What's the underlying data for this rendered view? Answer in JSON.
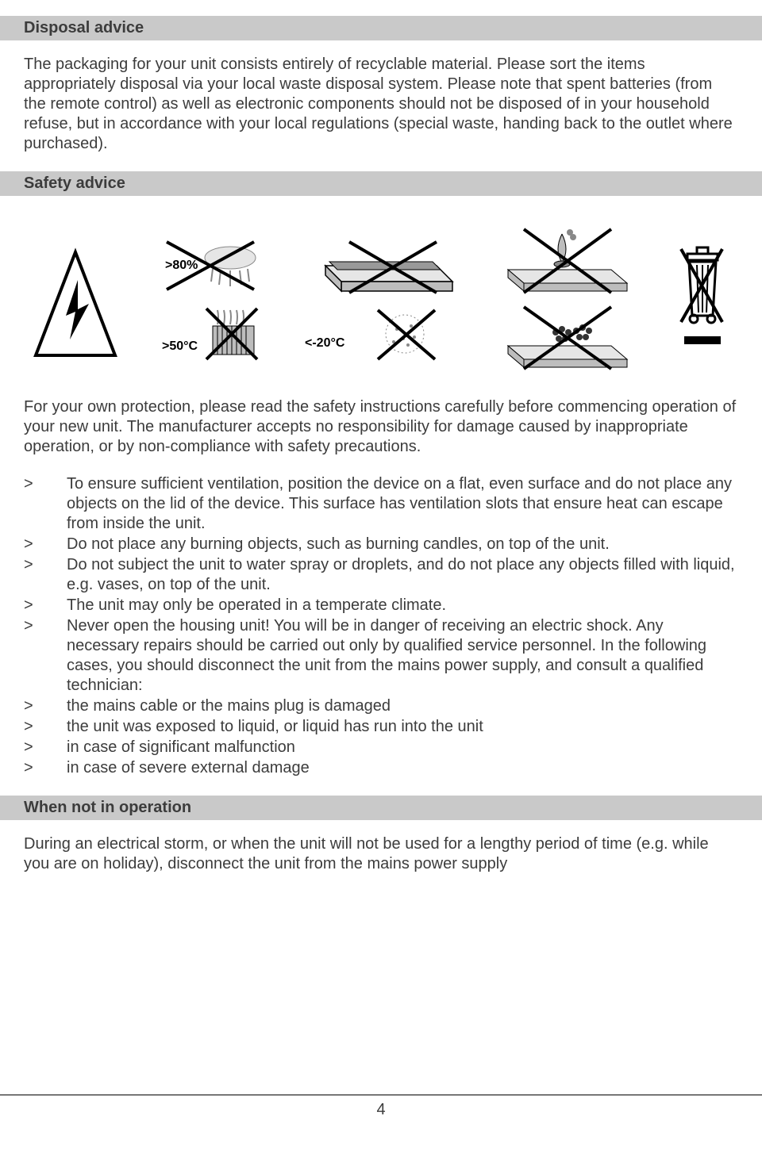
{
  "colors": {
    "text": "#3c3c3c",
    "header_bg": "#c9c9c9",
    "page_bg": "#ffffff",
    "icon_stroke": "#000000",
    "icon_fill_grey": "#bdbdbd",
    "icon_fill_light": "#e6e6e6"
  },
  "sections": {
    "disposal": {
      "title": "Disposal advice",
      "para": "The packaging for your unit consists entirely of recyclable material. Please sort the items appropriately disposal via your local waste disposal system. Please note that spent batteries (from the remote control) as well as electronic components should not be disposed of in your household refuse, but in accordance with your local regulations (special waste, handing back to the outlet where purchased)."
    },
    "safety": {
      "title": "Safety advice",
      "para": "For your own protection, please read the safety instructions carefully before commencing operation of your new unit. The manufacturer accepts no responsibility for damage caused by inappropriate operation, or by non-compliance with safety precautions.",
      "items": [
        "To ensure sufficient ventilation, position the device on a flat, even surface and do not place any objects on the lid of the device. This surface has ventilation slots that ensure heat can escape from inside the unit.",
        "Do not place any burning objects, such as burning candles, on top of the unit.",
        "Do not subject the unit to water spray or droplets, and do not place any objects filled with liquid, e.g. vases, on top of the unit.",
        "The unit may only be operated in a temperate climate.",
        "Never open the housing unit! You will be in danger of receiving an electric shock. Any necessary repairs should be carried out only by qualified service personnel. In the following cases, you should disconnect the unit from the mains power supply, and consult a qualified technician:",
        "the mains cable or the mains plug is damaged",
        "the unit was exposed to liquid, or liquid has run into the unit",
        "in case of significant malfunction",
        "in case of severe external damage"
      ],
      "marker": ">"
    },
    "not_in_op": {
      "title": "When not in operation",
      "para": "During an electrical storm, or when the unit will not be used for a lengthy period of time (e.g. while you are on holiday), disconnect the unit from the mains power supply"
    }
  },
  "icons": {
    "labels": {
      "humidity": ">80%",
      "hot": ">50°C",
      "cold": "<-20°C"
    }
  },
  "page_number": "4"
}
